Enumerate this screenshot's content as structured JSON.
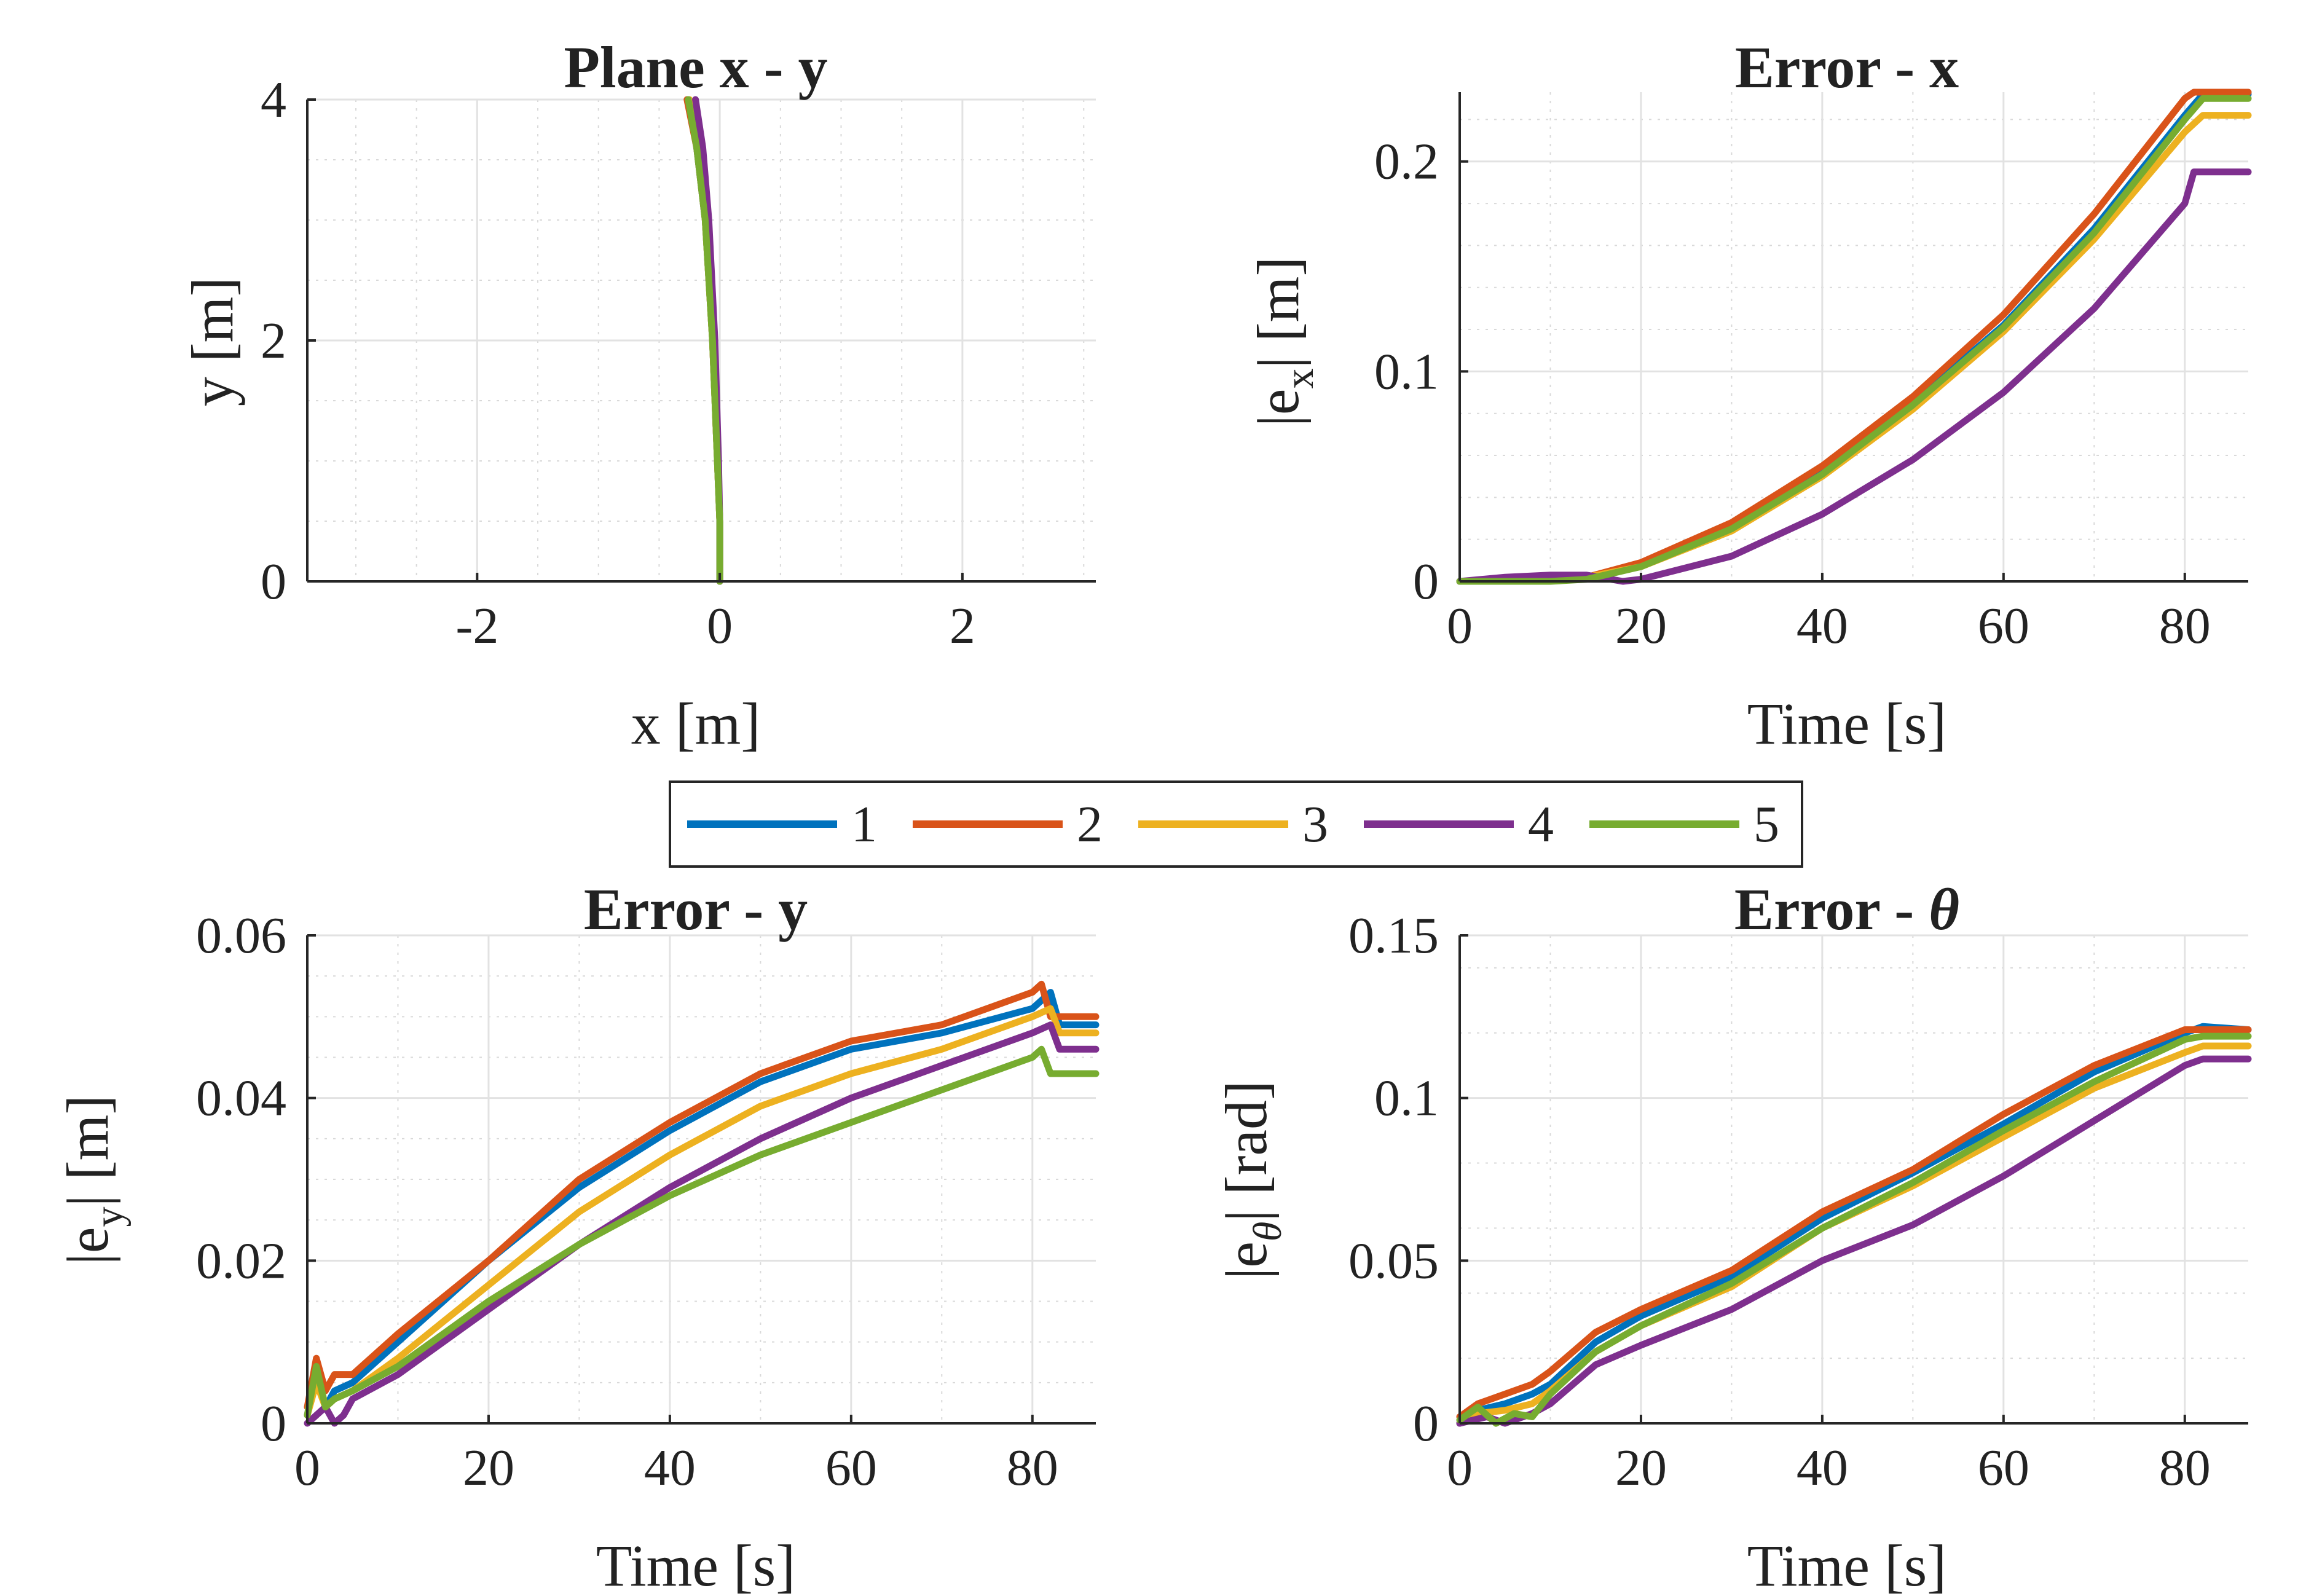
{
  "series_colors": {
    "1": "#0072BD",
    "2": "#D95319",
    "3": "#EDB120",
    "4": "#7E2F8E",
    "5": "#77AC30"
  },
  "legend": {
    "placement": "center",
    "entries": [
      "1",
      "2",
      "3",
      "4",
      "5"
    ]
  },
  "chart_data": [
    {
      "id": "xy",
      "type": "line",
      "title": "Plane x - y",
      "xlabel": "x [m]",
      "ylabel": "y [m]",
      "xlim": [
        -3.4,
        3.1
      ],
      "ylim": [
        0,
        4
      ],
      "xticks": [
        -2,
        0,
        2
      ],
      "xtick_labels": [
        "-2",
        "0",
        "2"
      ],
      "yticks": [
        0,
        2,
        4
      ],
      "ytick_labels": [
        "0",
        "2",
        "4"
      ],
      "grid": true,
      "minor_grid": true,
      "series": [
        {
          "name": "1",
          "x": [
            0.0,
            0.0,
            -0.02,
            -0.06,
            -0.12,
            -0.19,
            -0.26
          ],
          "y": [
            0.0,
            0.5,
            1.0,
            2.0,
            3.0,
            3.6,
            4.0
          ]
        },
        {
          "name": "2",
          "x": [
            0.0,
            0.0,
            -0.02,
            -0.06,
            -0.12,
            -0.19,
            -0.27
          ],
          "y": [
            0.0,
            0.5,
            1.0,
            2.0,
            3.0,
            3.6,
            4.0
          ]
        },
        {
          "name": "3",
          "x": [
            0.0,
            0.0,
            -0.02,
            -0.06,
            -0.12,
            -0.18,
            -0.25
          ],
          "y": [
            0.0,
            0.5,
            1.0,
            2.0,
            3.0,
            3.6,
            4.0
          ]
        },
        {
          "name": "4",
          "x": [
            0.0,
            0.0,
            -0.01,
            -0.04,
            -0.09,
            -0.14,
            -0.2
          ],
          "y": [
            0.0,
            0.5,
            1.0,
            2.0,
            3.0,
            3.6,
            4.0
          ]
        },
        {
          "name": "5",
          "x": [
            0.0,
            0.0,
            -0.02,
            -0.06,
            -0.12,
            -0.19,
            -0.26
          ],
          "y": [
            0.0,
            0.5,
            1.0,
            2.0,
            3.0,
            3.6,
            4.0
          ]
        }
      ]
    },
    {
      "id": "ex",
      "type": "line",
      "title": "Error - x",
      "xlabel": "Time [s]",
      "ylabel": "|e_x| [m]",
      "ylabel_parts": [
        "|e",
        "x",
        "| [m]"
      ],
      "xlim": [
        0,
        87
      ],
      "ylim": [
        0,
        0.233
      ],
      "xticks": [
        0,
        20,
        40,
        60,
        80
      ],
      "xtick_labels": [
        "0",
        "20",
        "40",
        "60",
        "80"
      ],
      "yticks": [
        0,
        0.1,
        0.2
      ],
      "ytick_labels": [
        "0",
        "0.1",
        "0.2"
      ],
      "grid": true,
      "minor_grid": true,
      "series": [
        {
          "name": "1",
          "x": [
            0,
            10,
            14,
            20,
            30,
            40,
            50,
            60,
            70,
            80,
            82,
            87
          ],
          "y": [
            0,
            0.001,
            0.002,
            0.008,
            0.026,
            0.052,
            0.085,
            0.122,
            0.168,
            0.222,
            0.232,
            0.232
          ]
        },
        {
          "name": "2",
          "x": [
            0,
            10,
            14,
            20,
            30,
            40,
            50,
            60,
            70,
            80,
            81,
            87
          ],
          "y": [
            0,
            0.001,
            0.002,
            0.009,
            0.028,
            0.055,
            0.088,
            0.127,
            0.175,
            0.23,
            0.233,
            0.233
          ]
        },
        {
          "name": "3",
          "x": [
            0,
            10,
            14,
            20,
            30,
            40,
            50,
            60,
            70,
            80,
            82,
            87
          ],
          "y": [
            0,
            0.001,
            0.002,
            0.007,
            0.024,
            0.05,
            0.082,
            0.119,
            0.163,
            0.214,
            0.222,
            0.222
          ]
        },
        {
          "name": "4",
          "x": [
            0,
            5,
            10,
            14,
            18,
            20,
            30,
            40,
            50,
            60,
            70,
            80,
            81,
            87
          ],
          "y": [
            0,
            0.002,
            0.003,
            0.003,
            0.0,
            0.001,
            0.012,
            0.032,
            0.058,
            0.09,
            0.13,
            0.18,
            0.195,
            0.195
          ]
        },
        {
          "name": "5",
          "x": [
            0,
            10,
            14,
            20,
            30,
            40,
            50,
            60,
            70,
            80,
            82,
            87
          ],
          "y": [
            0,
            0.0,
            0.001,
            0.007,
            0.025,
            0.051,
            0.084,
            0.121,
            0.166,
            0.22,
            0.23,
            0.23
          ]
        }
      ]
    },
    {
      "id": "ey",
      "type": "line",
      "title": "Error - y",
      "xlabel": "Time [s]",
      "ylabel": "|e_y| [m]",
      "ylabel_parts": [
        "|e",
        "y",
        "| [m]"
      ],
      "xlim": [
        0,
        87
      ],
      "ylim": [
        0,
        0.06
      ],
      "xticks": [
        0,
        20,
        40,
        60,
        80
      ],
      "xtick_labels": [
        "0",
        "20",
        "40",
        "60",
        "80"
      ],
      "yticks": [
        0,
        0.02,
        0.04,
        0.06
      ],
      "ytick_labels": [
        "0",
        "0.02",
        "0.04",
        "0.06"
      ],
      "grid": true,
      "minor_grid": true,
      "series": [
        {
          "name": "1",
          "x": [
            0,
            1,
            2,
            3,
            5,
            10,
            20,
            30,
            40,
            50,
            60,
            70,
            80,
            82,
            83,
            87
          ],
          "y": [
            0.001,
            0.006,
            0.002,
            0.004,
            0.005,
            0.01,
            0.02,
            0.029,
            0.036,
            0.042,
            0.046,
            0.048,
            0.051,
            0.053,
            0.049,
            0.049
          ]
        },
        {
          "name": "2",
          "x": [
            0,
            1,
            2,
            3,
            5,
            10,
            20,
            30,
            40,
            50,
            60,
            70,
            80,
            81,
            82,
            87
          ],
          "y": [
            0.002,
            0.008,
            0.004,
            0.006,
            0.006,
            0.011,
            0.02,
            0.03,
            0.037,
            0.043,
            0.047,
            0.049,
            0.053,
            0.054,
            0.05,
            0.05
          ]
        },
        {
          "name": "3",
          "x": [
            0,
            1,
            2,
            3,
            5,
            10,
            20,
            30,
            40,
            50,
            60,
            70,
            80,
            82,
            83,
            87
          ],
          "y": [
            0.001,
            0.005,
            0.002,
            0.003,
            0.004,
            0.008,
            0.017,
            0.026,
            0.033,
            0.039,
            0.043,
            0.046,
            0.05,
            0.051,
            0.048,
            0.048
          ]
        },
        {
          "name": "4",
          "x": [
            0,
            2,
            3,
            4,
            5,
            10,
            20,
            30,
            40,
            50,
            60,
            70,
            80,
            82,
            83,
            87
          ],
          "y": [
            0.0,
            0.002,
            0.0,
            0.001,
            0.003,
            0.006,
            0.014,
            0.022,
            0.029,
            0.035,
            0.04,
            0.044,
            0.048,
            0.049,
            0.046,
            0.046
          ]
        },
        {
          "name": "5",
          "x": [
            0,
            1,
            2,
            3,
            5,
            10,
            20,
            30,
            40,
            50,
            60,
            70,
            80,
            81,
            82,
            87
          ],
          "y": [
            0.001,
            0.007,
            0.002,
            0.003,
            0.004,
            0.007,
            0.015,
            0.022,
            0.028,
            0.033,
            0.037,
            0.041,
            0.045,
            0.046,
            0.043,
            0.043
          ]
        }
      ]
    },
    {
      "id": "et",
      "type": "line",
      "title": "Error - θ",
      "title_parts": [
        "Error - ",
        "θ"
      ],
      "xlabel": "Time [s]",
      "ylabel": "|e_θ| [rad]",
      "ylabel_parts": [
        "|e",
        "θ",
        "| [rad]"
      ],
      "xlim": [
        0,
        87
      ],
      "ylim": [
        0,
        0.15
      ],
      "xticks": [
        0,
        20,
        40,
        60,
        80
      ],
      "xtick_labels": [
        "0",
        "20",
        "40",
        "60",
        "80"
      ],
      "yticks": [
        0,
        0.05,
        0.1,
        0.15
      ],
      "ytick_labels": [
        "0",
        "0.05",
        "0.1",
        "0.15"
      ],
      "grid": true,
      "minor_grid": true,
      "series": [
        {
          "name": "1",
          "x": [
            0,
            2,
            5,
            8,
            10,
            15,
            20,
            30,
            40,
            50,
            60,
            70,
            80,
            82,
            87
          ],
          "y": [
            0.0,
            0.004,
            0.006,
            0.009,
            0.012,
            0.025,
            0.033,
            0.045,
            0.063,
            0.077,
            0.092,
            0.108,
            0.12,
            0.122,
            0.121
          ]
        },
        {
          "name": "2",
          "x": [
            0,
            2,
            5,
            8,
            10,
            15,
            20,
            30,
            40,
            50,
            60,
            70,
            80,
            82,
            87
          ],
          "y": [
            0.002,
            0.006,
            0.009,
            0.012,
            0.016,
            0.028,
            0.035,
            0.047,
            0.065,
            0.078,
            0.095,
            0.11,
            0.121,
            0.121,
            0.121
          ]
        },
        {
          "name": "3",
          "x": [
            0,
            2,
            5,
            8,
            10,
            15,
            20,
            30,
            40,
            50,
            60,
            70,
            80,
            82,
            87
          ],
          "y": [
            0.0,
            0.003,
            0.004,
            0.006,
            0.01,
            0.022,
            0.03,
            0.042,
            0.06,
            0.073,
            0.088,
            0.103,
            0.114,
            0.116,
            0.116
          ]
        },
        {
          "name": "4",
          "x": [
            0,
            3,
            5,
            8,
            10,
            15,
            20,
            30,
            40,
            50,
            60,
            70,
            80,
            82,
            87
          ],
          "y": [
            0.0,
            0.002,
            0.0,
            0.003,
            0.006,
            0.018,
            0.024,
            0.035,
            0.05,
            0.061,
            0.076,
            0.093,
            0.11,
            0.112,
            0.112
          ]
        },
        {
          "name": "5",
          "x": [
            0,
            2,
            4,
            6,
            8,
            10,
            15,
            20,
            30,
            40,
            50,
            60,
            70,
            80,
            82,
            87
          ],
          "y": [
            0.001,
            0.005,
            0.0,
            0.003,
            0.002,
            0.009,
            0.022,
            0.03,
            0.043,
            0.06,
            0.074,
            0.09,
            0.105,
            0.118,
            0.119,
            0.119
          ]
        }
      ]
    }
  ]
}
